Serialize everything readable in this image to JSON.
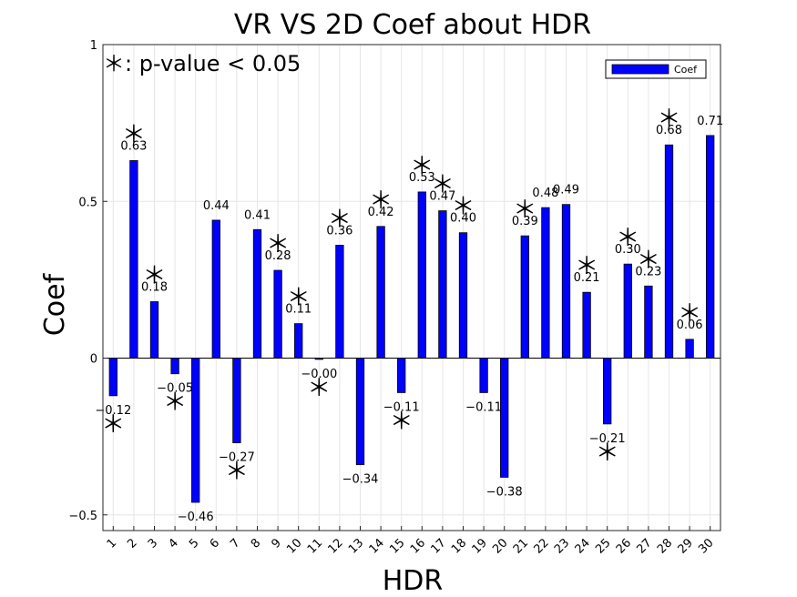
{
  "chart_data": {
    "type": "bar",
    "title": "VR VS 2D Coef about HDR",
    "xlabel": "HDR",
    "ylabel": "Coef",
    "ylim": [
      -0.55,
      1.0
    ],
    "yticks": [
      -0.5,
      0,
      0.5,
      1
    ],
    "ytick_labels": [
      "−0.5",
      "0",
      "0.5",
      "1"
    ],
    "grid": true,
    "legend_position": "top-right",
    "annotation": "＊: p-value < 0.05",
    "categories": [
      "1",
      "2",
      "3",
      "4",
      "5",
      "6",
      "7",
      "8",
      "9",
      "10",
      "11",
      "12",
      "13",
      "14",
      "15",
      "16",
      "17",
      "18",
      "19",
      "20",
      "21",
      "22",
      "23",
      "24",
      "25",
      "26",
      "27",
      "28",
      "29",
      "30"
    ],
    "series": [
      {
        "name": "Coef",
        "color": "#0000ff",
        "values": [
          -0.12,
          0.63,
          0.18,
          -0.05,
          -0.46,
          0.44,
          -0.27,
          0.41,
          0.28,
          0.11,
          -0.004,
          0.36,
          -0.34,
          0.42,
          -0.11,
          0.53,
          0.47,
          0.4,
          -0.11,
          -0.38,
          0.39,
          0.48,
          0.49,
          0.21,
          -0.21,
          0.3,
          0.23,
          0.68,
          0.06,
          0.71
        ],
        "labels": [
          "−0.12",
          "0.63",
          "0.18",
          "−0.05",
          "−0.46",
          "0.44",
          "−0.27",
          "0.41",
          "0.28",
          "0.11",
          "−0.00",
          "0.36",
          "−0.34",
          "0.42",
          "−0.11",
          "0.53",
          "0.47",
          "0.40",
          "−0.11",
          "−0.38",
          "0.39",
          "0.48",
          "0.49",
          "0.21",
          "−0.21",
          "0.30",
          "0.23",
          "0.68",
          "0.06",
          "0.71"
        ],
        "significant": [
          true,
          true,
          true,
          true,
          false,
          false,
          true,
          false,
          true,
          true,
          true,
          true,
          false,
          true,
          true,
          true,
          true,
          true,
          false,
          false,
          true,
          false,
          false,
          true,
          true,
          true,
          true,
          true,
          true,
          false
        ]
      }
    ],
    "significance_marker": "＊"
  }
}
